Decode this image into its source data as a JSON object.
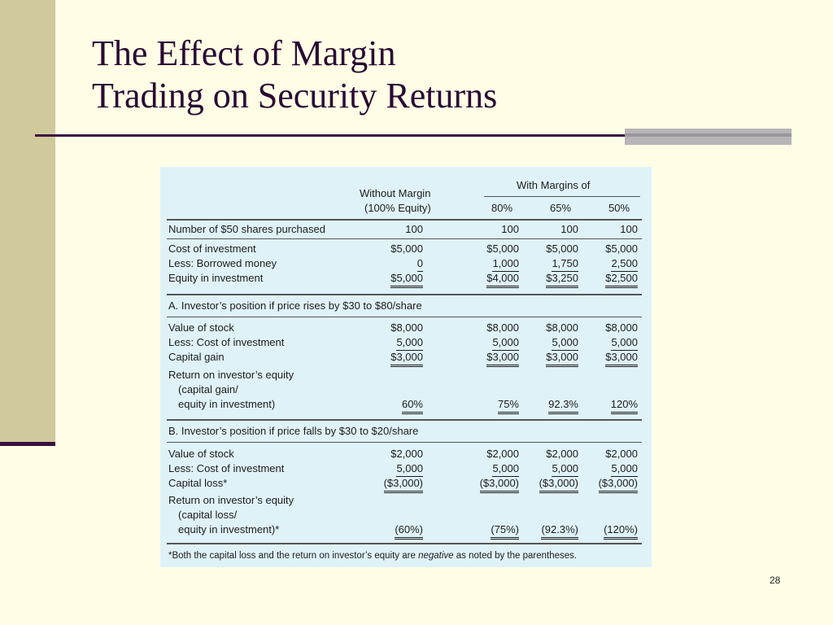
{
  "slide": {
    "title_line1": "The Effect of Margin",
    "title_line2": "Trading on Security Returns",
    "page_number": "28"
  },
  "table": {
    "header": {
      "without_margin_line1": "Without Margin",
      "without_margin_line2": "(100% Equity)",
      "with_margins": "With Margins of",
      "pct_80": "80%",
      "pct_65": "65%",
      "pct_50": "50%"
    },
    "rows_top": [
      {
        "label": "Number of $50 shares purchased",
        "v": [
          "100",
          "100",
          "100",
          "100"
        ]
      },
      {
        "label": "Cost of investment",
        "v": [
          "$5,000",
          "$5,000",
          "$5,000",
          "$5,000"
        ]
      },
      {
        "label": "Less: Borrowed money",
        "v": [
          "0",
          "1,000",
          "1,750",
          "2,500"
        ]
      },
      {
        "label": "Equity in investment",
        "v": [
          "$5,000",
          "$4,000",
          "$3,250",
          "$2,500"
        ]
      }
    ],
    "section_a": {
      "title": "A. Investor’s position if price rises by $30 to $80/share",
      "rows": [
        {
          "label": "Value of stock",
          "v": [
            "$8,000",
            "$8,000",
            "$8,000",
            "$8,000"
          ]
        },
        {
          "label": "Less: Cost of investment",
          "v": [
            "5,000",
            "5,000",
            "5,000",
            "5,000"
          ]
        },
        {
          "label": "Capital gain",
          "v": [
            "$3,000",
            "$3,000",
            "$3,000",
            "$3,000"
          ]
        }
      ],
      "return_line1": "Return on investor’s equity",
      "return_line2": "(capital gain/",
      "return_line3": "equity in investment)",
      "return_v": [
        "60%",
        "75%",
        "92.3%",
        "120%"
      ]
    },
    "section_b": {
      "title": "B. Investor’s position if price falls by $30 to $20/share",
      "rows": [
        {
          "label": "Value of stock",
          "v": [
            "$2,000",
            "$2,000",
            "$2,000",
            "$2,000"
          ]
        },
        {
          "label": "Less: Cost of investment",
          "v": [
            "5,000",
            "5,000",
            "5,000",
            "5,000"
          ]
        },
        {
          "label": "Capital loss*",
          "v": [
            "($3,000)",
            "($3,000)",
            "($3,000)",
            "($3,000)"
          ]
        }
      ],
      "return_line1": "Return on investor’s equity",
      "return_line2": "(capital loss/",
      "return_line3": "equity in investment)*",
      "return_v": [
        "(60%)",
        "(75%)",
        "(92.3%)",
        "(120%)"
      ]
    },
    "footnote_pre": "*Both the capital loss and the return on investor’s equity are ",
    "footnote_em": "negative",
    "footnote_post": " as noted by the parentheses."
  }
}
